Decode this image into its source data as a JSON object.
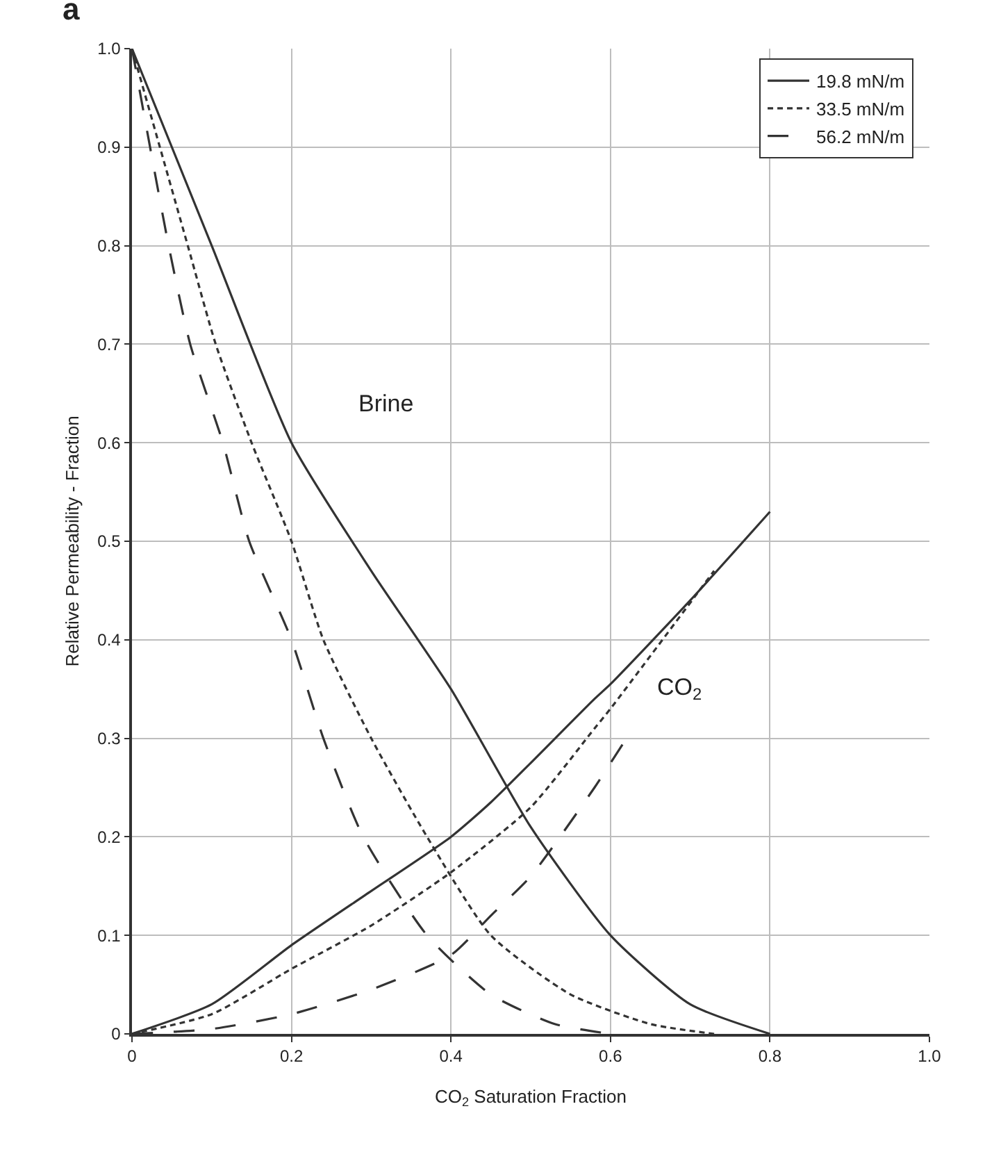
{
  "chart_data": {
    "type": "line",
    "xlabel": "CO$_{2}$ Saturation Fraction",
    "ylabel": "Relative Permeability - Fraction",
    "xlim": [
      0,
      1.0
    ],
    "ylim": [
      0,
      1.0
    ],
    "xticks": [
      0,
      0.2,
      0.4,
      0.6,
      0.8,
      {
        "value": 1.0,
        "label": "1.0"
      }
    ],
    "yticks": [
      0,
      0.1,
      0.2,
      0.3,
      0.4,
      0.5,
      0.6,
      0.7,
      0.8,
      0.9,
      {
        "value": 1.0,
        "label": "1.0"
      }
    ],
    "grid": true,
    "legend": "top right",
    "marker": "none",
    "series": [
      {
        "name": "19.8 mN/m",
        "color": "#333333",
        "line_style": "solid",
        "x": [
          0,
          0.1,
          0.2,
          0.3,
          0.4,
          0.5,
          0.6,
          0.7,
          0.8
        ],
        "values": [
          1.0,
          0.8,
          0.6,
          0.47,
          0.35,
          0.21,
          0.1,
          0.03,
          0
        ]
      },
      {
        "name": "33.5 mN/m",
        "color": "#333333",
        "line_style": "dotted",
        "x": [
          0,
          0.07,
          0.105,
          0.15,
          0.2,
          0.24,
          0.3,
          0.37,
          0.45,
          0.55,
          0.65,
          0.73
        ],
        "values": [
          1.0,
          0.8,
          0.7,
          0.6,
          0.5,
          0.4,
          0.3,
          0.2,
          0.1,
          0.04,
          0.01,
          0
        ]
      },
      {
        "name": "56.2 mN/m",
        "color": "#333333",
        "line_style": "dashed",
        "x": [
          0,
          0.046,
          0.073,
          0.114,
          0.147,
          0.2,
          0.24,
          0.29,
          0.37,
          0.45,
          0.53,
          0.6
        ],
        "values": [
          1.0,
          0.8,
          0.7,
          0.6,
          0.5,
          0.4,
          0.3,
          0.2,
          0.1,
          0.04,
          0.01,
          0
        ]
      },
      {
        "color": "#333333",
        "line_style": "solid",
        "x": [
          0,
          0.1,
          0.2,
          0.3,
          0.4,
          0.45,
          0.5,
          0.58,
          0.6,
          0.7,
          0.8
        ],
        "values": [
          0,
          0.03,
          0.09,
          0.145,
          0.2,
          0.235,
          0.275,
          0.34,
          0.355,
          0.44,
          0.53
        ]
      },
      {
        "color": "#333333",
        "line_style": "dotted",
        "x": [
          0,
          0.1,
          0.2,
          0.3,
          0.4,
          0.5,
          0.58,
          0.6,
          0.73
        ],
        "values": [
          0,
          0.02,
          0.066,
          0.11,
          0.164,
          0.23,
          0.31,
          0.33,
          0.47
        ]
      },
      {
        "color": "#333333",
        "line_style": "dashed",
        "x": [
          0,
          0.1,
          0.2,
          0.3,
          0.4,
          0.45,
          0.5,
          0.58,
          0.62
        ],
        "values": [
          0,
          0.005,
          0.02,
          0.045,
          0.08,
          0.12,
          0.16,
          0.25,
          0.3
        ]
      }
    ],
    "annotations": [
      "Brine",
      "CO$_{2}$",
      "a"
    ]
  }
}
